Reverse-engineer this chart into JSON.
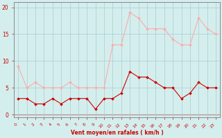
{
  "x": [
    0,
    1,
    2,
    3,
    4,
    5,
    6,
    7,
    8,
    9,
    10,
    11,
    12,
    13,
    14,
    15,
    16,
    17,
    18,
    19,
    20,
    21,
    22,
    23
  ],
  "vent_moyen": [
    3,
    3,
    2,
    2,
    3,
    2,
    3,
    3,
    3,
    1,
    3,
    3,
    4,
    8,
    7,
    7,
    6,
    5,
    5,
    3,
    4,
    6,
    5,
    5
  ],
  "en_rafales": [
    9,
    5,
    6,
    5,
    5,
    5,
    6,
    5,
    5,
    5,
    5,
    13,
    13,
    19,
    18,
    16,
    16,
    16,
    14,
    13,
    13,
    18,
    16,
    15
  ],
  "color_moyen": "#cc0000",
  "color_rafales": "#ffaaaa",
  "background_color": "#d4eeee",
  "grid_color": "#aacccc",
  "xlabel": "Vent moyen/en rafales ( km/h )",
  "ylabel_ticks": [
    0,
    5,
    10,
    15,
    20
  ],
  "ylim": [
    -0.5,
    21
  ],
  "xlim": [
    -0.5,
    23.5
  ],
  "xlabel_color": "#cc0000",
  "tick_color": "#cc0000",
  "spine_color": "#888888"
}
